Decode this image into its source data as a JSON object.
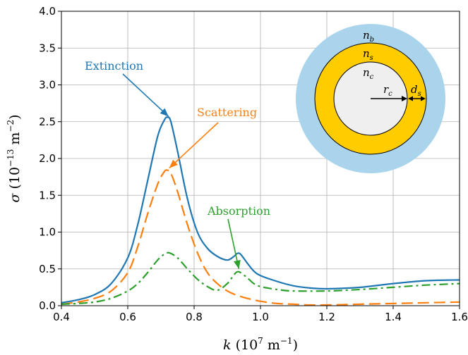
{
  "chart_data": {
    "type": "line",
    "xlabel": {
      "var": "k",
      "pre": "(10",
      "exp": "7",
      "mid": " m",
      "exp2": "−1",
      "post": ")"
    },
    "ylabel": {
      "var": "σ",
      "pre": "(10",
      "exp": "−13",
      "mid": " m",
      "exp2": "−2",
      "post": ")"
    },
    "xlim": [
      0.4,
      1.6
    ],
    "ylim": [
      0.0,
      4.0
    ],
    "xticks": [
      0.4,
      0.6,
      0.8,
      1.0,
      1.2,
      1.4,
      1.6
    ],
    "yticks": [
      0.0,
      0.5,
      1.0,
      1.5,
      2.0,
      2.5,
      3.0,
      3.5,
      4.0
    ],
    "xtick_labels": [
      "0.4",
      "0.6",
      "0.8",
      "1.0",
      "1.2",
      "1.4",
      "1.6"
    ],
    "ytick_labels": [
      "0.0",
      "0.5",
      "1.0",
      "1.5",
      "2.0",
      "2.5",
      "3.0",
      "3.5",
      "4.0"
    ],
    "grid": true,
    "series": [
      {
        "name": "Extinction",
        "color": "#1f77b4",
        "style": "solid",
        "x": [
          0.4,
          0.45,
          0.5,
          0.55,
          0.6,
          0.63,
          0.66,
          0.69,
          0.71,
          0.72,
          0.73,
          0.75,
          0.78,
          0.81,
          0.84,
          0.87,
          0.9,
          0.92,
          0.93,
          0.94,
          0.96,
          0.98,
          1.0,
          1.05,
          1.1,
          1.15,
          1.2,
          1.3,
          1.4,
          1.5,
          1.6
        ],
        "y": [
          0.04,
          0.08,
          0.15,
          0.3,
          0.65,
          1.1,
          1.7,
          2.3,
          2.52,
          2.56,
          2.5,
          2.1,
          1.45,
          1.0,
          0.78,
          0.67,
          0.62,
          0.67,
          0.71,
          0.7,
          0.58,
          0.47,
          0.41,
          0.33,
          0.27,
          0.24,
          0.23,
          0.25,
          0.3,
          0.34,
          0.35
        ]
      },
      {
        "name": "Scattering",
        "color": "#ff7f0e",
        "style": "dashed",
        "x": [
          0.4,
          0.45,
          0.5,
          0.55,
          0.6,
          0.63,
          0.66,
          0.69,
          0.71,
          0.72,
          0.73,
          0.75,
          0.78,
          0.81,
          0.84,
          0.87,
          0.9,
          0.93,
          0.96,
          1.0,
          1.05,
          1.1,
          1.15,
          1.2,
          1.3,
          1.4,
          1.5,
          1.6
        ],
        "y": [
          0.02,
          0.05,
          0.1,
          0.2,
          0.45,
          0.8,
          1.25,
          1.65,
          1.82,
          1.84,
          1.8,
          1.55,
          1.1,
          0.72,
          0.45,
          0.3,
          0.2,
          0.14,
          0.1,
          0.06,
          0.03,
          0.02,
          0.01,
          0.01,
          0.02,
          0.03,
          0.04,
          0.05
        ]
      },
      {
        "name": "Absorption",
        "color": "#2ca02c",
        "style": "dashdot",
        "x": [
          0.4,
          0.45,
          0.5,
          0.55,
          0.6,
          0.63,
          0.66,
          0.69,
          0.71,
          0.72,
          0.73,
          0.75,
          0.78,
          0.81,
          0.84,
          0.87,
          0.9,
          0.92,
          0.93,
          0.94,
          0.96,
          0.98,
          1.0,
          1.05,
          1.1,
          1.2,
          1.3,
          1.4,
          1.5,
          1.6
        ],
        "y": [
          0.02,
          0.03,
          0.05,
          0.1,
          0.2,
          0.3,
          0.45,
          0.62,
          0.7,
          0.72,
          0.71,
          0.65,
          0.5,
          0.36,
          0.26,
          0.21,
          0.3,
          0.42,
          0.46,
          0.45,
          0.38,
          0.3,
          0.26,
          0.22,
          0.2,
          0.2,
          0.22,
          0.25,
          0.28,
          0.3
        ]
      }
    ],
    "annotations": [
      {
        "text": "Extinction",
        "color": "#1f77b4",
        "target": [
          0.723,
          2.57
        ]
      },
      {
        "text": "Scattering",
        "color": "#ff7f0e",
        "target": [
          0.725,
          1.87
        ]
      },
      {
        "text": "Absorption",
        "color": "#2ca02c",
        "target": [
          0.935,
          0.5
        ]
      }
    ],
    "inset": {
      "outer_color": "#aad4ec",
      "shell_color": "#ffcc00",
      "core_color": "#efefef",
      "labels": {
        "nb": {
          "base": "n",
          "sub": "b"
        },
        "ns": {
          "base": "n",
          "sub": "s"
        },
        "nc": {
          "base": "n",
          "sub": "c"
        },
        "rc": {
          "base": "r",
          "sub": "c"
        },
        "ds": {
          "base": "d",
          "sub": "s"
        }
      }
    }
  }
}
